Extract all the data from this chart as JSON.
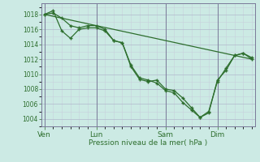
{
  "background_color": "#cceae4",
  "grid_major_color": "#b0b8cc",
  "grid_minor_color": "#c8d0dc",
  "line_color": "#2d6e2d",
  "marker_color": "#2d6e2d",
  "xlabel": "Pression niveau de la mer( hPa )",
  "ylim": [
    1003.0,
    1019.5
  ],
  "yticks": [
    1004,
    1006,
    1008,
    1010,
    1012,
    1014,
    1016,
    1018
  ],
  "day_labels": [
    "Ven",
    "Lun",
    "Sam",
    "Dim"
  ],
  "day_positions": [
    0,
    36,
    84,
    120
  ],
  "vline_x": [
    0,
    36,
    84,
    120
  ],
  "total_hours": 144,
  "series_straight": {
    "x": [
      0,
      144
    ],
    "y": [
      1018.0,
      1012.0
    ]
  },
  "series_a": {
    "x": [
      0,
      6,
      12,
      18,
      24,
      30,
      36,
      42,
      48,
      54,
      60,
      66,
      72,
      78,
      84,
      90,
      96,
      102,
      108,
      114,
      120,
      126,
      132,
      138,
      144
    ],
    "y": [
      1018.0,
      1018.2,
      1017.5,
      1016.5,
      1016.2,
      1016.5,
      1016.5,
      1016.0,
      1014.5,
      1014.2,
      1011.0,
      1009.3,
      1009.0,
      1009.2,
      1008.0,
      1007.8,
      1006.8,
      1005.5,
      1004.2,
      1004.8,
      1009.2,
      1010.5,
      1012.5,
      1012.8,
      1012.0
    ]
  },
  "series_b": {
    "x": [
      0,
      6,
      12,
      18,
      24,
      30,
      36,
      42,
      48,
      54,
      60,
      66,
      72,
      78,
      84,
      90,
      96,
      102,
      108,
      114,
      120,
      126,
      132,
      138,
      144
    ],
    "y": [
      1018.0,
      1018.5,
      1015.8,
      1014.8,
      1016.0,
      1016.2,
      1016.2,
      1015.8,
      1014.5,
      1014.2,
      1011.2,
      1009.5,
      1009.2,
      1008.8,
      1007.8,
      1007.5,
      1006.2,
      1005.2,
      1004.2,
      1005.0,
      1009.0,
      1010.8,
      1012.5,
      1012.8,
      1012.2
    ]
  }
}
